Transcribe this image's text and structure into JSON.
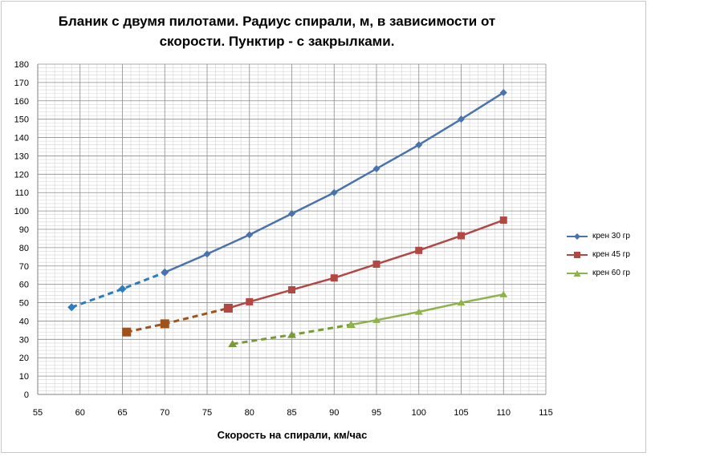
{
  "chart_data": {
    "type": "line",
    "title_lines": [
      "Бланик с двумя пилотами. Радиус спирали, м, в зависимости от",
      "скорости. Пунктир - с закрылками."
    ],
    "xlabel": "Скорость на спирали, км/час",
    "ylabel": "",
    "xlim": [
      55,
      115
    ],
    "ylim": [
      0,
      180
    ],
    "xticks": [
      55,
      60,
      65,
      70,
      75,
      80,
      85,
      90,
      95,
      100,
      105,
      110,
      115
    ],
    "yticks": [
      0,
      10,
      20,
      30,
      40,
      50,
      60,
      70,
      80,
      90,
      100,
      110,
      120,
      130,
      140,
      150,
      160,
      170,
      180
    ],
    "grid": true,
    "legend_position": "right",
    "series": [
      {
        "name": "крен 30 гр",
        "color": "#4a73ad",
        "marker": "diamond",
        "solid": {
          "x": [
            70,
            75,
            80,
            85,
            90,
            95,
            100,
            105,
            110
          ],
          "y": [
            66.5,
            76.5,
            87,
            98.5,
            110,
            123,
            136,
            150,
            164.5
          ]
        },
        "dashed": {
          "x": [
            59,
            65,
            70
          ],
          "y": [
            47.5,
            57.5,
            66.5
          ],
          "color": "#2d7bc0"
        }
      },
      {
        "name": "крен 45 гр",
        "color": "#b24744",
        "marker": "square",
        "solid": {
          "x": [
            77.5,
            80,
            85,
            90,
            95,
            100,
            105,
            110
          ],
          "y": [
            47,
            50.5,
            57,
            63.5,
            71,
            78.5,
            86.5,
            95
          ]
        },
        "dashed": {
          "x": [
            65.5,
            70,
            77.5
          ],
          "y": [
            34,
            38.5,
            47
          ],
          "color": "#a0521a"
        }
      },
      {
        "name": "крен 60 гр",
        "color": "#8fb24c",
        "marker": "triangle",
        "solid": {
          "x": [
            92,
            95,
            100,
            105,
            110
          ],
          "y": [
            38,
            40.5,
            45,
            50,
            54.5
          ]
        },
        "dashed": {
          "x": [
            78,
            85,
            92
          ],
          "y": [
            27.5,
            32.5,
            38
          ],
          "color": "#7a9a3a"
        }
      }
    ]
  }
}
